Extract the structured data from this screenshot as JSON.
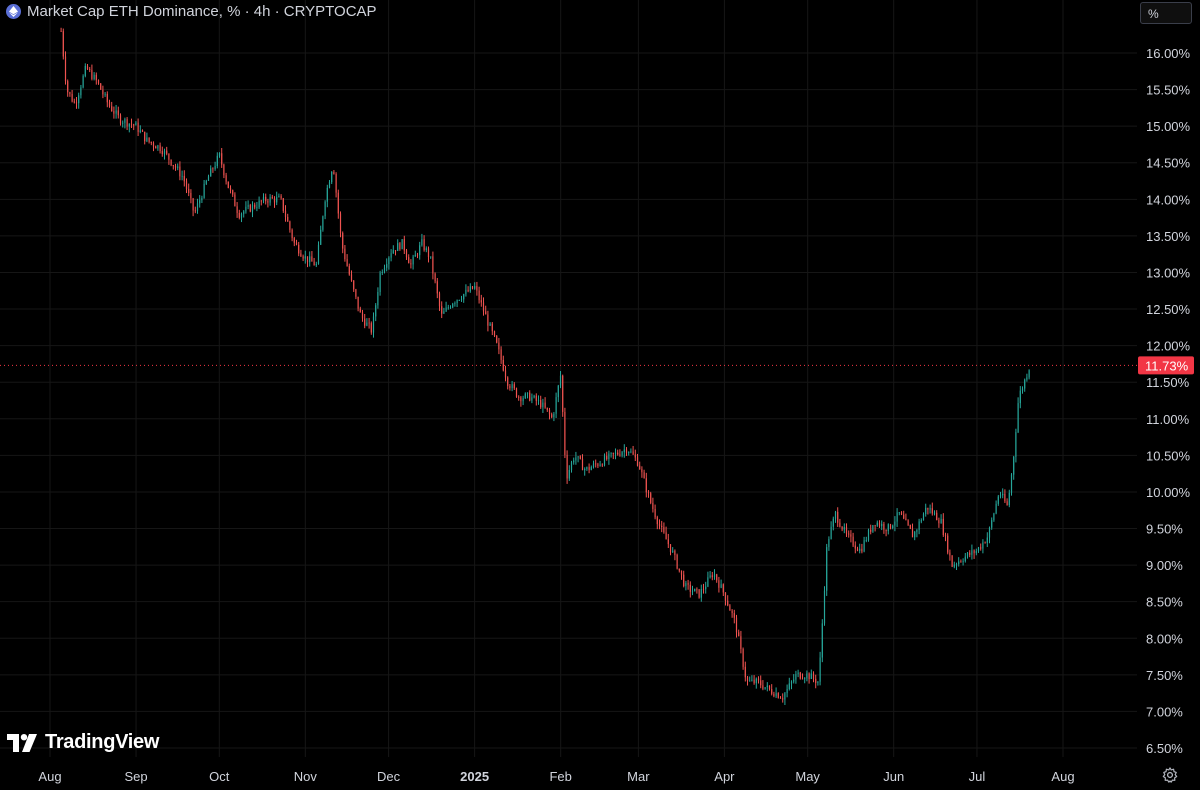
{
  "header": {
    "title": "Market Cap ETH Dominance, % · 4h · CRYPTOCAP",
    "unit_button": "%"
  },
  "branding": {
    "logo_text": "TradingView"
  },
  "colors": {
    "background": "#000000",
    "grid": "#161616",
    "up": "#26a69a",
    "down": "#ef5350",
    "text": "#d1d4dc",
    "price_label_bg": "#f23645",
    "price_line": "#f23645"
  },
  "chart_data": {
    "type": "line",
    "style": "candlestick",
    "interval": "4h",
    "ylim": [
      6.4,
      16.5
    ],
    "y_ticks": [
      "16.00%",
      "15.50%",
      "15.00%",
      "14.50%",
      "14.00%",
      "13.50%",
      "13.00%",
      "12.50%",
      "12.00%",
      "11.50%",
      "11.00%",
      "10.50%",
      "10.00%",
      "9.50%",
      "9.00%",
      "8.50%",
      "8.00%",
      "7.50%",
      "7.00%",
      "6.50%"
    ],
    "x_ticks": [
      "Aug",
      "Sep",
      "Oct",
      "Nov",
      "Dec",
      "2025",
      "Feb",
      "Mar",
      "Apr",
      "May",
      "Jun",
      "Jul",
      "Aug"
    ],
    "x_tick_dates": [
      "2024-08-01",
      "2024-09-01",
      "2024-10-01",
      "2024-11-01",
      "2024-12-01",
      "2025-01-01",
      "2025-02-01",
      "2025-03-01",
      "2025-04-01",
      "2025-05-01",
      "2025-06-01",
      "2025-07-01",
      "2025-08-01"
    ],
    "last_price": 11.73,
    "last_price_label": "11.73%",
    "grid": true,
    "series": [
      {
        "x": [
          "2024-08-05",
          "2024-08-07",
          "2024-08-10",
          "2024-08-14",
          "2024-08-18",
          "2024-08-22",
          "2024-08-26",
          "2024-09-01",
          "2024-09-05",
          "2024-09-10",
          "2024-09-14",
          "2024-09-18",
          "2024-09-22",
          "2024-09-27",
          "2024-10-01",
          "2024-10-04",
          "2024-10-08",
          "2024-10-13",
          "2024-10-18",
          "2024-10-23",
          "2024-10-28",
          "2024-11-01",
          "2024-11-05",
          "2024-11-08",
          "2024-11-11",
          "2024-11-14",
          "2024-11-18",
          "2024-11-21",
          "2024-11-25",
          "2024-11-28",
          "2024-12-02",
          "2024-12-06",
          "2024-12-09",
          "2024-12-13",
          "2024-12-16",
          "2024-12-20",
          "2024-12-24",
          "2024-12-28",
          "2025-01-01",
          "2025-01-05",
          "2025-01-09",
          "2025-01-13",
          "2025-01-17",
          "2025-01-21",
          "2025-01-25",
          "2025-01-29",
          "2025-02-01",
          "2025-02-03",
          "2025-02-06",
          "2025-02-10",
          "2025-02-15",
          "2025-02-20",
          "2025-02-25",
          "2025-03-01",
          "2025-03-05",
          "2025-03-09",
          "2025-03-13",
          "2025-03-18",
          "2025-03-23",
          "2025-03-28",
          "2025-04-01",
          "2025-04-05",
          "2025-04-09",
          "2025-04-13",
          "2025-04-17",
          "2025-04-22",
          "2025-04-27",
          "2025-05-01",
          "2025-05-05",
          "2025-05-08",
          "2025-05-11",
          "2025-05-15",
          "2025-05-20",
          "2025-05-25",
          "2025-05-30",
          "2025-06-03",
          "2025-06-08",
          "2025-06-13",
          "2025-06-18",
          "2025-06-22",
          "2025-06-26",
          "2025-07-01",
          "2025-07-05",
          "2025-07-09",
          "2025-07-12",
          "2025-07-14",
          "2025-07-16",
          "2025-07-18",
          "2025-07-20"
        ],
        "values": [
          16.3,
          15.5,
          15.3,
          15.8,
          15.6,
          15.3,
          15.1,
          15.0,
          14.8,
          14.7,
          14.5,
          14.3,
          13.8,
          14.3,
          14.6,
          14.2,
          13.8,
          13.9,
          14.0,
          14.0,
          13.4,
          13.2,
          13.1,
          14.0,
          14.5,
          13.4,
          12.8,
          12.4,
          12.2,
          13.0,
          13.3,
          13.4,
          13.1,
          13.4,
          13.2,
          12.4,
          12.6,
          12.7,
          12.8,
          12.4,
          12.0,
          11.5,
          11.3,
          11.3,
          11.2,
          11.0,
          11.6,
          10.2,
          10.5,
          10.3,
          10.4,
          10.5,
          10.6,
          10.4,
          9.9,
          9.5,
          9.2,
          8.7,
          8.6,
          8.9,
          8.6,
          8.2,
          7.4,
          7.4,
          7.3,
          7.2,
          7.5,
          7.5,
          7.4,
          9.3,
          9.7,
          9.4,
          9.2,
          9.6,
          9.5,
          9.7,
          9.4,
          9.8,
          9.6,
          9.0,
          9.1,
          9.2,
          9.4,
          10.0,
          9.8,
          10.4,
          11.3,
          11.5,
          11.73
        ]
      }
    ]
  }
}
